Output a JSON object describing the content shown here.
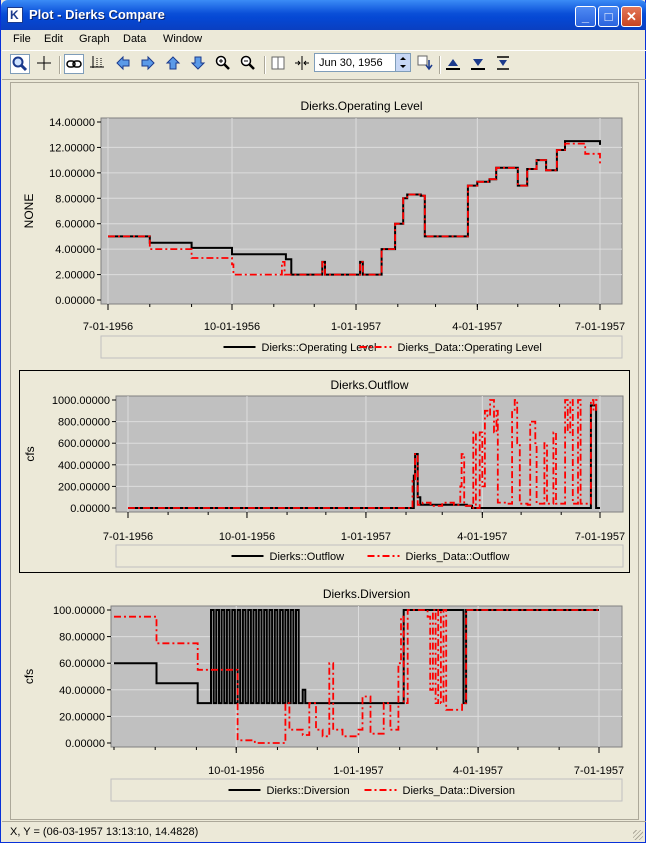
{
  "window": {
    "title": "Plot - Dierks Compare",
    "app_icon_letter": "K"
  },
  "menu": [
    "File",
    "Edit",
    "Graph",
    "Data",
    "Window"
  ],
  "toolbar": {
    "date_value": "Jun 30, 1956"
  },
  "status": {
    "text": "X, Y = (06-03-1957 13:13:10, 14.4828)"
  },
  "colors": {
    "series1": "#000000",
    "series2": "#ff0000",
    "plot_bg": "#c0c0c0",
    "grid": "#dddddd"
  },
  "charts": [
    {
      "title": "Dierks.Operating Level",
      "ylabel": "NONE",
      "yticks": [
        "14.00000",
        "12.00000",
        "10.00000",
        "8.00000",
        "6.00000",
        "4.00000",
        "2.00000",
        "0.00000"
      ],
      "xticks": [
        "7-01-1956",
        "10-01-1956",
        "1-01-1957",
        "4-01-1957",
        "7-01-1957"
      ],
      "legend": [
        "Dierks::Operating Level",
        "Dierks_Data::Operating Level"
      ]
    },
    {
      "title": "Dierks.Outflow",
      "ylabel": "cfs",
      "yticks": [
        "1000.00000",
        "800.00000",
        "600.00000",
        "400.00000",
        "200.00000",
        "0.00000"
      ],
      "xticks": [
        "7-01-1956",
        "10-01-1956",
        "1-01-1957",
        "4-01-1957",
        "7-01-1957"
      ],
      "legend": [
        "Dierks::Outflow",
        "Dierks_Data::Outflow"
      ]
    },
    {
      "title": "Dierks.Diversion",
      "ylabel": "cfs",
      "yticks": [
        "100.00000",
        "80.00000",
        "60.00000",
        "40.00000",
        "20.00000",
        "0.00000"
      ],
      "xticks": [
        "10-01-1956",
        "1-01-1957",
        "4-01-1957",
        "7-01-1957"
      ],
      "legend": [
        "Dierks::Diversion",
        "Dierks_Data::Diversion"
      ]
    }
  ],
  "chart_data": [
    {
      "type": "line",
      "title": "Dierks.Operating Level",
      "ylabel": "NONE",
      "xlabel": "",
      "ylim": [
        0,
        14
      ],
      "xlim": [
        "1956-07-01",
        "1957-07-01"
      ],
      "grid": true,
      "legend_position": "bottom",
      "series": [
        {
          "name": "Dierks::Operating Level",
          "style": "solid",
          "points": [
            [
              "1956-07-01",
              5.0
            ],
            [
              "1956-08-01",
              4.5
            ],
            [
              "1956-09-01",
              4.1
            ],
            [
              "1956-10-01",
              3.6
            ],
            [
              "1956-11-10",
              3.2
            ],
            [
              "1956-11-14",
              2.0
            ],
            [
              "1956-12-05",
              2.0
            ],
            [
              "1956-12-07",
              3.0
            ],
            [
              "1956-12-09",
              2.0
            ],
            [
              "1957-01-01",
              2.0
            ],
            [
              "1957-01-04",
              3.0
            ],
            [
              "1957-01-06",
              2.0
            ],
            [
              "1957-01-15",
              2.0
            ],
            [
              "1957-01-20",
              4.0
            ],
            [
              "1957-01-30",
              6.0
            ],
            [
              "1957-02-05",
              8.0
            ],
            [
              "1957-02-08",
              8.3
            ],
            [
              "1957-02-18",
              8.2
            ],
            [
              "1957-02-21",
              5.0
            ],
            [
              "1957-03-23",
              5.0
            ],
            [
              "1957-03-25",
              9.0
            ],
            [
              "1957-04-01",
              9.3
            ],
            [
              "1957-04-10",
              9.5
            ],
            [
              "1957-04-15",
              10.4
            ],
            [
              "1957-05-01",
              9.0
            ],
            [
              "1957-05-08",
              10.3
            ],
            [
              "1957-05-15",
              11.0
            ],
            [
              "1957-05-22",
              10.2
            ],
            [
              "1957-05-30",
              11.8
            ],
            [
              "1957-06-05",
              12.5
            ],
            [
              "1957-06-20",
              12.5
            ],
            [
              "1957-07-01",
              12.2
            ]
          ]
        },
        {
          "name": "Dierks_Data::Operating Level",
          "style": "dash-dot",
          "points": [
            [
              "1956-07-01",
              5.0
            ],
            [
              "1956-08-01",
              4.0
            ],
            [
              "1956-09-01",
              3.3
            ],
            [
              "1956-10-01",
              2.8
            ],
            [
              "1956-10-02",
              2.0
            ],
            [
              "1956-11-05",
              2.0
            ],
            [
              "1956-11-07",
              3.0
            ],
            [
              "1956-11-09",
              2.0
            ],
            [
              "1956-12-05",
              2.0
            ],
            [
              "1956-12-07",
              3.0
            ],
            [
              "1956-12-09",
              2.0
            ],
            [
              "1957-01-01",
              2.0
            ],
            [
              "1957-01-04",
              3.0
            ],
            [
              "1957-01-06",
              2.0
            ],
            [
              "1957-01-15",
              2.0
            ],
            [
              "1957-01-20",
              4.0
            ],
            [
              "1957-01-30",
              6.0
            ],
            [
              "1957-02-05",
              8.0
            ],
            [
              "1957-02-08",
              8.3
            ],
            [
              "1957-02-18",
              8.2
            ],
            [
              "1957-02-21",
              5.0
            ],
            [
              "1957-03-23",
              5.0
            ],
            [
              "1957-03-25",
              9.0
            ],
            [
              "1957-04-01",
              9.3
            ],
            [
              "1957-04-10",
              9.5
            ],
            [
              "1957-04-15",
              10.4
            ],
            [
              "1957-05-01",
              9.0
            ],
            [
              "1957-05-08",
              10.3
            ],
            [
              "1957-05-15",
              11.0
            ],
            [
              "1957-05-22",
              10.2
            ],
            [
              "1957-05-30",
              11.8
            ],
            [
              "1957-06-05",
              12.3
            ],
            [
              "1957-06-20",
              11.5
            ],
            [
              "1957-07-01",
              10.7
            ]
          ]
        }
      ]
    },
    {
      "type": "line",
      "title": "Dierks.Outflow",
      "ylabel": "cfs",
      "xlabel": "",
      "ylim": [
        0,
        1000
      ],
      "xlim": [
        "1956-07-01",
        "1957-07-01"
      ],
      "grid": true,
      "legend_position": "bottom",
      "series": [
        {
          "name": "Dierks::Outflow",
          "style": "solid",
          "points": [
            [
              "1956-07-01",
              0
            ],
            [
              "1957-02-05",
              0
            ],
            [
              "1957-02-07",
              300
            ],
            [
              "1957-02-08",
              500
            ],
            [
              "1957-02-10",
              100
            ],
            [
              "1957-02-12",
              30
            ],
            [
              "1957-03-20",
              20
            ],
            [
              "1957-03-24",
              0
            ],
            [
              "1957-06-23",
              0
            ],
            [
              "1957-06-24",
              950
            ],
            [
              "1957-06-27",
              950
            ],
            [
              "1957-06-28",
              0
            ],
            [
              "1957-07-01",
              0
            ]
          ]
        },
        {
          "name": "Dierks_Data::Outflow",
          "style": "dash-dot",
          "points": [
            [
              "1956-07-01",
              0
            ],
            [
              "1957-02-03",
              0
            ],
            [
              "1957-02-06",
              250
            ],
            [
              "1957-02-08",
              500
            ],
            [
              "1957-02-10",
              30
            ],
            [
              "1957-02-14",
              50
            ],
            [
              "1957-02-20",
              20
            ],
            [
              "1957-03-01",
              50
            ],
            [
              "1957-03-10",
              30
            ],
            [
              "1957-03-15",
              200
            ],
            [
              "1957-03-16",
              500
            ],
            [
              "1957-03-18",
              20
            ],
            [
              "1957-03-24",
              0
            ],
            [
              "1957-03-25",
              700
            ],
            [
              "1957-03-27",
              0
            ],
            [
              "1957-03-30",
              700
            ],
            [
              "1957-04-01",
              200
            ],
            [
              "1957-04-03",
              900
            ],
            [
              "1957-04-05",
              850
            ],
            [
              "1957-04-07",
              1000
            ],
            [
              "1957-04-10",
              700
            ],
            [
              "1957-04-12",
              900
            ],
            [
              "1957-04-13",
              50
            ],
            [
              "1957-04-20",
              40
            ],
            [
              "1957-04-24",
              900
            ],
            [
              "1957-04-26",
              1000
            ],
            [
              "1957-04-28",
              600
            ],
            [
              "1957-04-30",
              40
            ],
            [
              "1957-05-06",
              30
            ],
            [
              "1957-05-08",
              800
            ],
            [
              "1957-05-12",
              600
            ],
            [
              "1957-05-13",
              40
            ],
            [
              "1957-05-19",
              600
            ],
            [
              "1957-05-21",
              40
            ],
            [
              "1957-05-26",
              700
            ],
            [
              "1957-05-28",
              40
            ],
            [
              "1957-06-04",
              1000
            ],
            [
              "1957-06-06",
              700
            ],
            [
              "1957-06-08",
              1000
            ],
            [
              "1957-06-10",
              40
            ],
            [
              "1957-06-14",
              1000
            ],
            [
              "1957-06-16",
              40
            ],
            [
              "1957-06-22",
              40
            ],
            [
              "1957-06-24",
              1000
            ],
            [
              "1957-06-26",
              900
            ],
            [
              "1957-06-28",
              1000
            ],
            [
              "1957-07-01",
              1000
            ]
          ]
        }
      ]
    },
    {
      "type": "line",
      "title": "Dierks.Diversion",
      "ylabel": "cfs",
      "xlabel": "",
      "ylim": [
        0,
        100
      ],
      "xlim": [
        "1956-07-01",
        "1957-07-01"
      ],
      "grid": true,
      "legend_position": "bottom",
      "series": [
        {
          "name": "Dierks::Diversion",
          "style": "solid",
          "points": [
            [
              "1956-07-01",
              60
            ],
            [
              "1956-08-01",
              60
            ],
            [
              "1956-08-02",
              45
            ],
            [
              "1956-09-01",
              45
            ],
            [
              "1956-09-02",
              30
            ],
            [
              "1956-09-10",
              30
            ],
            [
              "1956-09-12",
              100
            ],
            [
              "1956-09-14",
              30
            ],
            [
              "1956-09-16",
              100
            ],
            [
              "1956-09-18",
              30
            ],
            [
              "1956-09-20",
              100
            ],
            [
              "1956-09-22",
              30
            ],
            [
              "1956-09-24",
              100
            ],
            [
              "1956-09-26",
              30
            ],
            [
              "1956-09-28",
              100
            ],
            [
              "1956-09-30",
              30
            ],
            [
              "1956-10-02",
              100
            ],
            [
              "1956-10-04",
              30
            ],
            [
              "1956-10-06",
              100
            ],
            [
              "1956-10-08",
              30
            ],
            [
              "1956-10-10",
              100
            ],
            [
              "1956-10-12",
              30
            ],
            [
              "1956-10-14",
              100
            ],
            [
              "1956-10-16",
              30
            ],
            [
              "1956-10-18",
              100
            ],
            [
              "1956-10-20",
              30
            ],
            [
              "1956-10-22",
              100
            ],
            [
              "1956-10-24",
              30
            ],
            [
              "1956-10-26",
              100
            ],
            [
              "1956-10-28",
              30
            ],
            [
              "1956-10-30",
              100
            ],
            [
              "1956-11-01",
              30
            ],
            [
              "1956-11-03",
              100
            ],
            [
              "1956-11-05",
              30
            ],
            [
              "1956-11-07",
              100
            ],
            [
              "1956-11-09",
              30
            ],
            [
              "1956-11-11",
              100
            ],
            [
              "1956-11-13",
              30
            ],
            [
              "1956-11-15",
              100
            ],
            [
              "1956-11-17",
              30
            ],
            [
              "1956-11-20",
              40
            ],
            [
              "1956-11-22",
              30
            ],
            [
              "1957-02-03",
              30
            ],
            [
              "1957-02-04",
              100
            ],
            [
              "1957-03-20",
              100
            ],
            [
              "1957-03-21",
              30
            ],
            [
              "1957-03-23",
              100
            ],
            [
              "1957-07-01",
              100
            ]
          ]
        },
        {
          "name": "Dierks_Data::Diversion",
          "style": "dash-dot",
          "points": [
            [
              "1956-07-01",
              95
            ],
            [
              "1956-08-01",
              95
            ],
            [
              "1956-08-02",
              75
            ],
            [
              "1956-09-01",
              75
            ],
            [
              "1956-09-02",
              55
            ],
            [
              "1956-09-28",
              55
            ],
            [
              "1956-10-02",
              2
            ],
            [
              "1956-10-15",
              0
            ],
            [
              "1956-11-05",
              0
            ],
            [
              "1956-11-07",
              30
            ],
            [
              "1956-11-10",
              10
            ],
            [
              "1956-11-20",
              6
            ],
            [
              "1956-11-25",
              30
            ],
            [
              "1956-11-30",
              10
            ],
            [
              "1956-12-05",
              5
            ],
            [
              "1956-12-10",
              60
            ],
            [
              "1956-12-13",
              10
            ],
            [
              "1956-12-20",
              5
            ],
            [
              "1957-01-01",
              10
            ],
            [
              "1957-01-04",
              35
            ],
            [
              "1957-01-10",
              7
            ],
            [
              "1957-01-20",
              30
            ],
            [
              "1957-01-25",
              10
            ],
            [
              "1957-01-31",
              60
            ],
            [
              "1957-02-02",
              95
            ],
            [
              "1957-02-04",
              30
            ],
            [
              "1957-02-07",
              100
            ],
            [
              "1957-02-20",
              100
            ],
            [
              "1957-02-22",
              95
            ],
            [
              "1957-02-24",
              40
            ],
            [
              "1957-02-26",
              100
            ],
            [
              "1957-02-28",
              30
            ],
            [
              "1957-03-02",
              100
            ],
            [
              "1957-03-04",
              30
            ],
            [
              "1957-03-06",
              100
            ],
            [
              "1957-03-08",
              25
            ],
            [
              "1957-03-20",
              30
            ],
            [
              "1957-03-23",
              100
            ],
            [
              "1957-07-01",
              100
            ]
          ]
        }
      ]
    }
  ]
}
